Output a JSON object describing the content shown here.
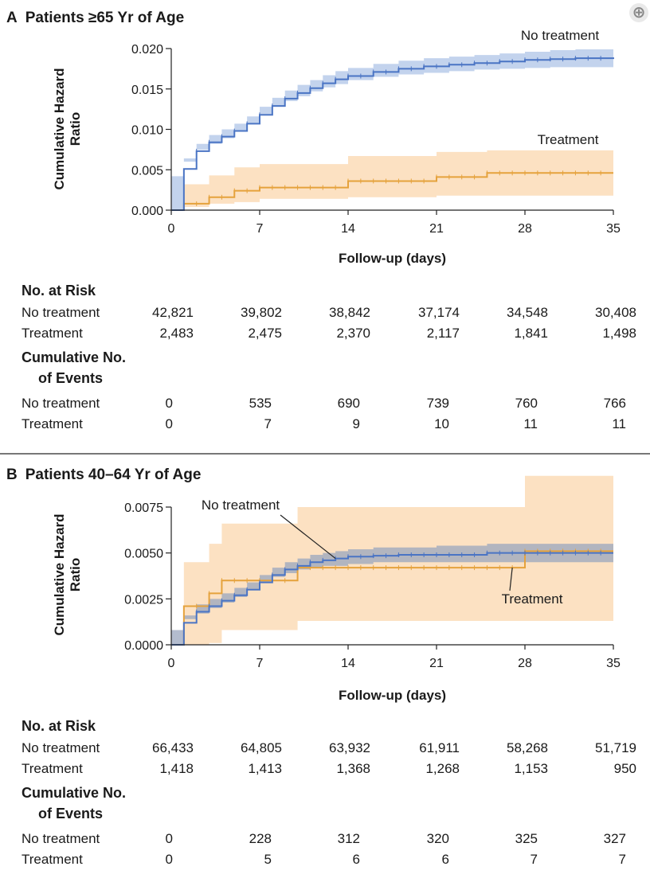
{
  "ui": {
    "expand_icon": "zoom-in-icon",
    "expand_glyph": "⊕"
  },
  "panels": [
    {
      "letter": "A",
      "title": "Patients ≥65 Yr of Age",
      "ylabel_lines": [
        "Cumulative Hazard",
        "Ratio"
      ],
      "risk_heading": "No. at Risk",
      "events_heading_lines": [
        "Cumulative No.",
        "of Events"
      ],
      "risk_rows": [
        {
          "label": "No treatment",
          "values": [
            "42,821",
            "39,802",
            "38,842",
            "37,174",
            "34,548",
            "30,408"
          ]
        },
        {
          "label": "Treatment",
          "values": [
            "2,483",
            "2,475",
            "2,370",
            "2,117",
            "1,841",
            "1,498"
          ]
        }
      ],
      "event_rows": [
        {
          "label": "No treatment",
          "values": [
            "0",
            "535",
            "690",
            "739",
            "760",
            "766"
          ]
        },
        {
          "label": "Treatment",
          "values": [
            "0",
            "7",
            "9",
            "10",
            "11",
            "11"
          ]
        }
      ]
    },
    {
      "letter": "B",
      "title": "Patients 40–64 Yr of Age",
      "ylabel_lines": [
        "Cumulative Hazard",
        "Ratio"
      ],
      "risk_heading": "No. at Risk",
      "events_heading_lines": [
        "Cumulative No.",
        "of Events"
      ],
      "risk_rows": [
        {
          "label": "No treatment",
          "values": [
            "66,433",
            "64,805",
            "63,932",
            "61,911",
            "58,268",
            "51,719"
          ]
        },
        {
          "label": "Treatment",
          "values": [
            "1,418",
            "1,413",
            "1,368",
            "1,268",
            "1,153",
            "950"
          ]
        }
      ],
      "event_rows": [
        {
          "label": "No treatment",
          "values": [
            "0",
            "228",
            "312",
            "320",
            "325",
            "327"
          ]
        },
        {
          "label": "Treatment",
          "values": [
            "0",
            "5",
            "6",
            "6",
            "7",
            "7"
          ]
        }
      ]
    }
  ],
  "chart_data": [
    {
      "type": "line",
      "subtype": "step",
      "title": "Patients ≥65 Yr of Age",
      "xlabel": "Follow-up (days)",
      "ylabel": "Cumulative Hazard Ratio",
      "xlim": [
        0,
        35
      ],
      "ylim": [
        0,
        0.02
      ],
      "xticks": [
        0,
        7,
        14,
        21,
        28,
        35
      ],
      "yticks": [
        0,
        0.005,
        0.01,
        0.015,
        0.02
      ],
      "ytick_labels": [
        "0.000",
        "0.005",
        "0.010",
        "0.015",
        "0.020"
      ],
      "grid": false,
      "series": [
        {
          "name": "No treatment",
          "color": "#4a74c4",
          "band_color": "#b9cbea",
          "x": [
            0,
            1,
            2,
            3,
            4,
            5,
            6,
            7,
            8,
            9,
            10,
            11,
            12,
            13,
            14,
            16,
            18,
            20,
            22,
            24,
            26,
            28,
            30,
            32,
            35
          ],
          "y": [
            0,
            0.0051,
            0.0073,
            0.0084,
            0.0091,
            0.0098,
            0.0107,
            0.0118,
            0.0129,
            0.0138,
            0.0145,
            0.0151,
            0.0157,
            0.0162,
            0.0166,
            0.0171,
            0.0175,
            0.0178,
            0.018,
            0.0182,
            0.0184,
            0.0186,
            0.0187,
            0.0188,
            0.0189
          ],
          "lower": [
            0,
            0.0042,
            0.0064,
            0.0075,
            0.0082,
            0.0089,
            0.0098,
            0.0108,
            0.0119,
            0.0128,
            0.0135,
            0.0141,
            0.0147,
            0.0152,
            0.0156,
            0.0161,
            0.0165,
            0.0168,
            0.017,
            0.0172,
            0.0174,
            0.0175,
            0.0176,
            0.0177,
            0.0177
          ],
          "upper": [
            0,
            0.006,
            0.0082,
            0.0093,
            0.01,
            0.0107,
            0.0116,
            0.0128,
            0.0139,
            0.0148,
            0.0155,
            0.0161,
            0.0167,
            0.0172,
            0.0176,
            0.0181,
            0.0185,
            0.0188,
            0.019,
            0.0192,
            0.0194,
            0.0196,
            0.0198,
            0.0199,
            0.02
          ]
        },
        {
          "name": "Treatment",
          "color": "#e5a23c",
          "band_color": "#fbdcb7",
          "x": [
            0,
            1,
            3,
            5,
            7,
            14,
            21,
            25,
            35
          ],
          "y": [
            0,
            0.0008,
            0.0016,
            0.0024,
            0.0028,
            0.0036,
            0.0041,
            0.0046,
            0.0046
          ],
          "lower": [
            0,
            0.0001,
            0.0004,
            0.0008,
            0.001,
            0.0014,
            0.0016,
            0.0018,
            0.0018
          ],
          "upper": [
            0,
            0.0032,
            0.0043,
            0.0053,
            0.0057,
            0.0067,
            0.0072,
            0.0074,
            0.0074
          ]
        }
      ]
    },
    {
      "type": "line",
      "subtype": "step",
      "title": "Patients 40–64 Yr of Age",
      "xlabel": "Follow-up (days)",
      "ylabel": "Cumulative Hazard Ratio",
      "xlim": [
        0,
        35
      ],
      "ylim": [
        0,
        0.0075
      ],
      "xticks": [
        0,
        7,
        14,
        21,
        28,
        35
      ],
      "yticks": [
        0,
        0.0025,
        0.005,
        0.0075
      ],
      "ytick_labels": [
        "0.0000",
        "0.0025",
        "0.0050",
        "0.0075"
      ],
      "grid": false,
      "series": [
        {
          "name": "No treatment",
          "color": "#4a74c4",
          "band_color": "#9aa6bd",
          "x": [
            0,
            1,
            2,
            3,
            4,
            5,
            6,
            7,
            8,
            9,
            10,
            11,
            12,
            13,
            14,
            16,
            18,
            21,
            25,
            28,
            35
          ],
          "y": [
            0,
            0.0012,
            0.0018,
            0.0021,
            0.0024,
            0.0027,
            0.003,
            0.0034,
            0.0038,
            0.0041,
            0.0043,
            0.0045,
            0.0046,
            0.0047,
            0.0048,
            0.00485,
            0.0049,
            0.0049,
            0.005,
            0.005,
            0.005
          ],
          "lower": [
            0,
            0.0008,
            0.0014,
            0.0017,
            0.002,
            0.0023,
            0.0026,
            0.003,
            0.0034,
            0.0037,
            0.0039,
            0.0041,
            0.0042,
            0.0043,
            0.0043,
            0.0044,
            0.0045,
            0.0045,
            0.0045,
            0.0045,
            0.0045
          ],
          "upper": [
            0,
            0.0016,
            0.0022,
            0.0025,
            0.0028,
            0.0031,
            0.0034,
            0.0038,
            0.0042,
            0.0045,
            0.0047,
            0.0049,
            0.005,
            0.0051,
            0.0052,
            0.0053,
            0.0053,
            0.0054,
            0.0055,
            0.0055,
            0.0055
          ]
        },
        {
          "name": "Treatment",
          "color": "#e5a23c",
          "band_color": "#fbdcb7",
          "x": [
            0,
            1,
            3,
            4,
            10,
            28,
            35
          ],
          "y": [
            0,
            0.0021,
            0.0028,
            0.0035,
            0.0042,
            0.0051,
            0.0051
          ],
          "lower": [
            0,
            0,
            0,
            0.0001,
            0.0008,
            0.0013,
            0.0013
          ],
          "upper": [
            0,
            0.0045,
            0.0055,
            0.0066,
            0.0075,
            0.0092,
            0.0092
          ]
        }
      ],
      "annotations": [
        {
          "text": "No treatment",
          "points_to": [
            13,
            0.0047
          ]
        },
        {
          "text": "Treatment",
          "points_to": [
            27,
            0.0042
          ]
        }
      ]
    }
  ]
}
